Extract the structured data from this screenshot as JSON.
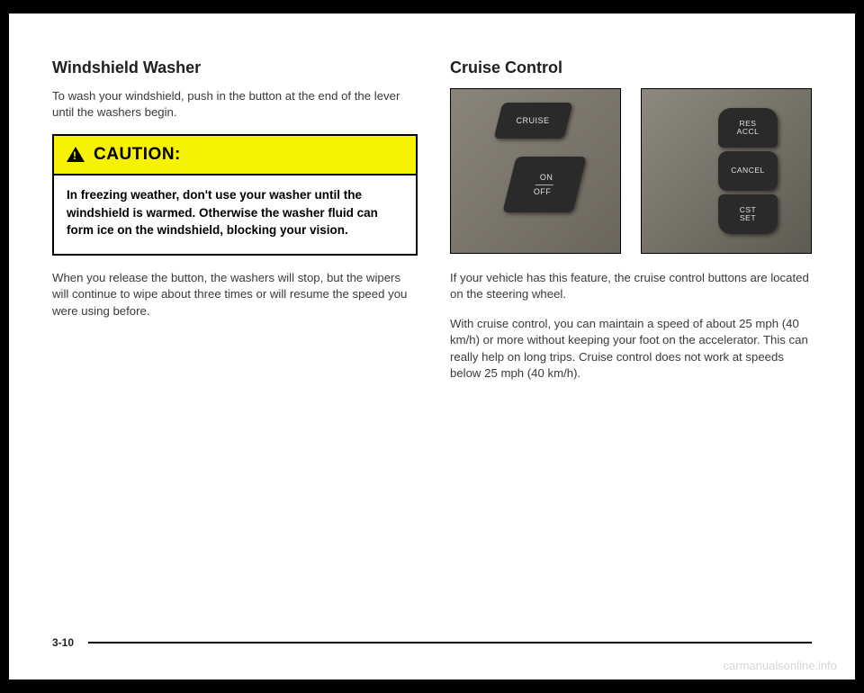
{
  "left": {
    "heading": "Windshield Washer",
    "intro": "To wash your windshield, push in the button at the end of the lever until the washers begin.",
    "caution": {
      "title": "CAUTION:",
      "body": "In freezing weather, don't use your washer until the windshield is warmed. Otherwise the washer fluid can form ice on the windshield, blocking your vision."
    },
    "after": "When you release the button, the washers will stop, but the wipers will continue to wipe about three times or will resume the speed you were using before."
  },
  "right": {
    "heading": "Cruise Control",
    "photo1": {
      "btn1": "CRUISE",
      "btn2_top": "ON",
      "btn2_bot": "OFF"
    },
    "photo2": {
      "btn1_l1": "RES",
      "btn1_l2": "ACCL",
      "btn2": "CANCEL",
      "btn3_l1": "CST",
      "btn3_l2": "SET"
    },
    "p1": "If your vehicle has this feature, the cruise control buttons are located on the steering wheel.",
    "p2": "With cruise control, you can maintain a speed of about 25 mph (40 km/h) or more without keeping your foot on the accelerator. This can really help on long trips. Cruise control does not work at speeds below 25 mph (40 km/h)."
  },
  "footer": {
    "page": "3-10",
    "watermark": "carmanualsonline.info"
  }
}
